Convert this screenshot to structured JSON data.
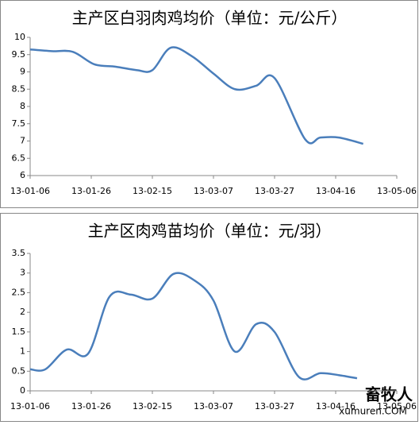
{
  "chart_data": [
    {
      "type": "line",
      "title": "主产区白羽肉鸡均价（单位：元/公斤）",
      "x": [
        "13-01-06",
        "13-01-13",
        "13-01-20",
        "13-01-27",
        "13-02-03",
        "13-02-10",
        "13-02-15",
        "13-02-21",
        "13-02-28",
        "13-03-07",
        "13-03-14",
        "13-03-21",
        "13-03-27",
        "13-04-06",
        "13-04-11",
        "13-04-17",
        "13-04-25"
      ],
      "series": [
        {
          "color": "#4a7ebb",
          "values": [
            9.65,
            9.6,
            9.58,
            9.22,
            9.15,
            9.05,
            9.05,
            9.7,
            9.45,
            8.95,
            8.5,
            8.6,
            8.82,
            7.05,
            7.1,
            7.1,
            6.92
          ]
        }
      ],
      "xlim": [
        "13-01-06",
        "13-05-06"
      ],
      "xticks": [
        "13-01-06",
        "13-01-26",
        "13-02-15",
        "13-03-07",
        "13-03-27",
        "13-04-16",
        "13-05-06"
      ],
      "ylim": [
        6,
        10
      ],
      "yticks": [
        6,
        6.5,
        7,
        7.5,
        8,
        8.5,
        9,
        9.5,
        10
      ],
      "grid": false
    },
    {
      "type": "line",
      "title": "主产区肉鸡苗均价（单位：元/羽）",
      "x": [
        "13-01-06",
        "13-01-11",
        "13-01-18",
        "13-01-25",
        "13-02-01",
        "13-02-08",
        "13-02-15",
        "13-02-22",
        "13-03-01",
        "13-03-07",
        "13-03-14",
        "13-03-21",
        "13-03-27",
        "13-04-04",
        "13-04-11",
        "13-04-17",
        "13-04-23"
      ],
      "series": [
        {
          "color": "#4a7ebb",
          "values": [
            0.55,
            0.55,
            1.05,
            0.95,
            2.4,
            2.45,
            2.35,
            2.98,
            2.8,
            2.3,
            1.0,
            1.7,
            1.5,
            0.35,
            0.45,
            0.4,
            0.32
          ]
        }
      ],
      "xlim": [
        "13-01-06",
        "13-05-06"
      ],
      "xticks": [
        "13-01-06",
        "13-01-26",
        "13-02-15",
        "13-03-07",
        "13-03-27",
        "13-04-16",
        "13-05-06"
      ],
      "ylim": [
        0,
        3.5
      ],
      "yticks": [
        0,
        0.5,
        1,
        1.5,
        2,
        2.5,
        3,
        3.5
      ],
      "grid": false
    }
  ],
  "watermark": {
    "name": "畜牧人",
    "site": "xumuren.COM"
  }
}
